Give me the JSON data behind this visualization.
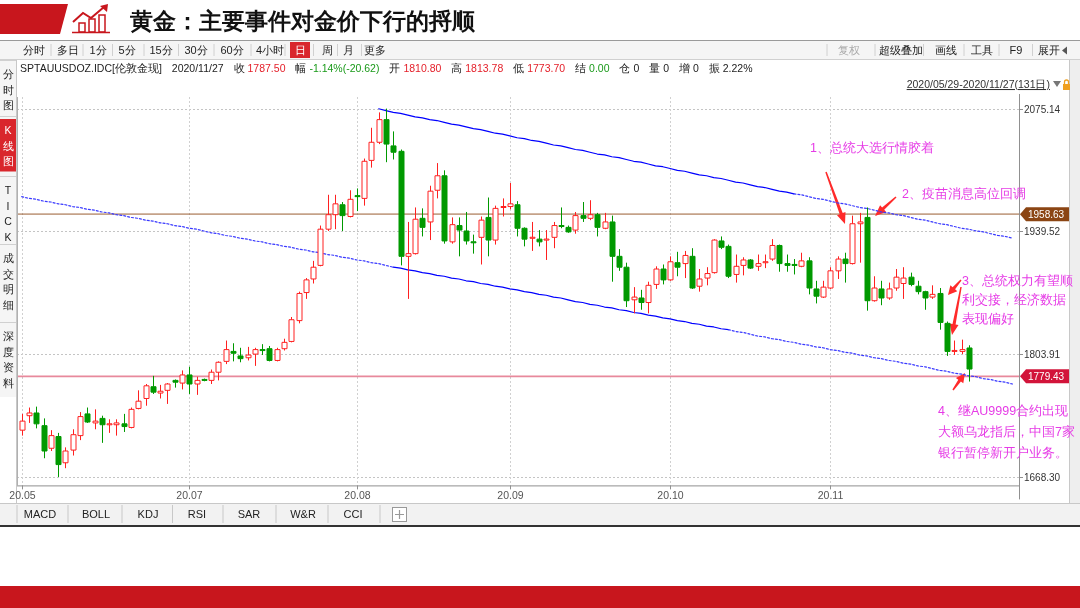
{
  "chart_data": {
    "type": "candlestick",
    "title": "黄金：主要事件对金价下行的捋顺",
    "categories": [
      "20.05",
      null,
      null,
      null,
      null,
      null,
      null,
      null,
      null,
      null,
      null,
      null,
      null,
      null,
      null,
      null,
      null,
      null,
      null,
      null,
      null,
      null,
      null,
      "20.07",
      null,
      null,
      null,
      null,
      null,
      null,
      null,
      null,
      null,
      null,
      null,
      null,
      null,
      null,
      null,
      null,
      null,
      null,
      null,
      null,
      null,
      null,
      "20.08",
      null,
      null,
      null,
      null,
      null,
      null,
      null,
      null,
      null,
      null,
      null,
      null,
      null,
      null,
      null,
      null,
      null,
      null,
      null,
      null,
      "20.09",
      null,
      null,
      null,
      null,
      null,
      null,
      null,
      null,
      null,
      null,
      null,
      null,
      null,
      null,
      null,
      null,
      null,
      null,
      null,
      null,
      null,
      "20.10",
      null,
      null,
      null,
      null,
      null,
      null,
      null,
      null,
      null,
      null,
      null,
      null,
      null,
      null,
      null,
      null,
      null,
      null,
      null,
      null,
      null,
      "20.11",
      null,
      null,
      null,
      null,
      null,
      null,
      null,
      null,
      null,
      null,
      null,
      null,
      null,
      null,
      null,
      null,
      null,
      null,
      null,
      null,
      null,
      null,
      null,
      null,
      null
    ],
    "ohlc": [
      [
        1720,
        1738,
        1714,
        1730
      ],
      [
        1736,
        1745,
        1728,
        1739
      ],
      [
        1739,
        1746,
        1722,
        1727
      ],
      [
        1725,
        1733,
        1689,
        1697
      ],
      [
        1700,
        1720,
        1697,
        1714
      ],
      [
        1713,
        1717,
        1668.3,
        1682
      ],
      [
        1684,
        1701,
        1678,
        1697
      ],
      [
        1698,
        1721,
        1692,
        1715
      ],
      [
        1714,
        1740,
        1709,
        1735
      ],
      [
        1738,
        1745,
        1728,
        1729
      ],
      [
        1728,
        1743,
        1721,
        1730
      ],
      [
        1733,
        1736,
        1706,
        1726
      ],
      [
        1726,
        1732,
        1717,
        1727
      ],
      [
        1726,
        1732,
        1714,
        1728
      ],
      [
        1727,
        1738,
        1718,
        1724
      ],
      [
        1723,
        1745,
        1722,
        1743
      ],
      [
        1744,
        1764,
        1743,
        1752
      ],
      [
        1755,
        1771,
        1747,
        1769
      ],
      [
        1768,
        1780,
        1760,
        1762
      ],
      [
        1761,
        1770,
        1755,
        1763
      ],
      [
        1764,
        1772,
        1749,
        1771
      ],
      [
        1775,
        1776,
        1767,
        1773
      ],
      [
        1772,
        1786,
        1765,
        1781
      ],
      [
        1781,
        1790,
        1760,
        1771
      ],
      [
        1771,
        1779,
        1759,
        1775
      ],
      [
        1776,
        1777,
        1774,
        1775
      ],
      [
        1775,
        1787,
        1771,
        1784
      ],
      [
        1784,
        1796,
        1775,
        1795
      ],
      [
        1796,
        1819,
        1793,
        1809
      ],
      [
        1807,
        1816,
        1796,
        1805
      ],
      [
        1802,
        1811,
        1795,
        1799
      ],
      [
        1800,
        1812,
        1797,
        1803
      ],
      [
        1804,
        1811,
        1791,
        1809
      ],
      [
        1809,
        1815,
        1803,
        1808
      ],
      [
        1810,
        1813,
        1796,
        1797
      ],
      [
        1797,
        1811,
        1796,
        1809
      ],
      [
        1810,
        1821,
        1808,
        1817
      ],
      [
        1818,
        1845,
        1817,
        1842
      ],
      [
        1841,
        1873,
        1838,
        1871
      ],
      [
        1872,
        1888,
        1865,
        1886
      ],
      [
        1887,
        1907,
        1882,
        1900
      ],
      [
        1902,
        1946,
        1901,
        1942
      ],
      [
        1942,
        1980,
        1940,
        1958
      ],
      [
        1958,
        1980,
        1942,
        1970
      ],
      [
        1969,
        1972,
        1940,
        1957
      ],
      [
        1956,
        1985,
        1955,
        1975
      ],
      [
        1979,
        1987,
        1962,
        1978
      ],
      [
        1976,
        2020,
        1968,
        2017
      ],
      [
        2018,
        2054,
        2010,
        2038
      ],
      [
        2038,
        2071,
        2036,
        2063
      ],
      [
        2063,
        2075.14,
        2016,
        2036
      ],
      [
        2034,
        2050,
        2019,
        2027
      ],
      [
        2028,
        2030,
        1902,
        1912
      ],
      [
        1912,
        1950,
        1865,
        1915
      ],
      [
        1915,
        1966,
        1914,
        1953
      ],
      [
        1954,
        1965,
        1934,
        1944
      ],
      [
        1950,
        1990,
        1930,
        1984
      ],
      [
        1985,
        2015,
        1976,
        2001
      ],
      [
        2001,
        2007,
        1926,
        1929
      ],
      [
        1928,
        1955,
        1926,
        1947
      ],
      [
        1946,
        1955,
        1912,
        1941
      ],
      [
        1940,
        1961,
        1925,
        1929
      ],
      [
        1928,
        1936,
        1915,
        1927
      ],
      [
        1933,
        1956,
        1903,
        1952
      ],
      [
        1955,
        1977,
        1912,
        1930
      ],
      [
        1930,
        1968,
        1925,
        1965
      ],
      [
        1966,
        1976,
        1956,
        1967
      ],
      [
        1967,
        1993,
        1964,
        1970
      ],
      [
        1969,
        1973,
        1934,
        1943
      ],
      [
        1943,
        1944,
        1923,
        1931
      ],
      [
        1932,
        1950,
        1918,
        1933
      ],
      [
        1931,
        1941,
        1923,
        1928
      ],
      [
        1930,
        1941,
        1908,
        1931
      ],
      [
        1933,
        1950,
        1921,
        1946
      ],
      [
        1946,
        1966,
        1943,
        1945
      ],
      [
        1944,
        1946,
        1938,
        1939
      ],
      [
        1941,
        1961,
        1937,
        1957
      ],
      [
        1957,
        1972,
        1950,
        1954
      ],
      [
        1954,
        1974,
        1952,
        1958
      ],
      [
        1958,
        1960,
        1934,
        1944
      ],
      [
        1943,
        1960,
        1942,
        1950
      ],
      [
        1950,
        1957,
        1884,
        1912
      ],
      [
        1912,
        1920,
        1896,
        1900
      ],
      [
        1900,
        1905,
        1856,
        1863
      ],
      [
        1864,
        1878,
        1849,
        1867
      ],
      [
        1866,
        1875,
        1853,
        1861
      ],
      [
        1861,
        1884,
        1849,
        1880
      ],
      [
        1881,
        1901,
        1876,
        1898
      ],
      [
        1898,
        1903,
        1881,
        1886
      ],
      [
        1886,
        1912,
        1885,
        1906
      ],
      [
        1905,
        1917,
        1890,
        1900
      ],
      [
        1904,
        1918,
        1888,
        1913
      ],
      [
        1912,
        1921,
        1876,
        1877
      ],
      [
        1879,
        1898,
        1873,
        1887
      ],
      [
        1888,
        1900,
        1880,
        1893
      ],
      [
        1894,
        1931,
        1893,
        1930
      ],
      [
        1929,
        1934,
        1920,
        1922
      ],
      [
        1923,
        1925,
        1888,
        1890
      ],
      [
        1892,
        1914,
        1883,
        1901
      ],
      [
        1902,
        1911,
        1891,
        1908
      ],
      [
        1908,
        1909,
        1898,
        1899
      ],
      [
        1901,
        1914,
        1896,
        1904
      ],
      [
        1905,
        1914,
        1899,
        1906
      ],
      [
        1909,
        1931,
        1907,
        1924
      ],
      [
        1924,
        1925,
        1895,
        1904
      ],
      [
        1904,
        1914,
        1895,
        1902
      ],
      [
        1903,
        1909,
        1892,
        1902
      ],
      [
        1901,
        1916,
        1900,
        1907
      ],
      [
        1907,
        1911,
        1870,
        1877
      ],
      [
        1876,
        1885,
        1860,
        1868
      ],
      [
        1867,
        1885,
        1866,
        1878
      ],
      [
        1877,
        1900,
        1876,
        1896
      ],
      [
        1896,
        1912,
        1887,
        1909
      ],
      [
        1909,
        1916,
        1883,
        1904
      ],
      [
        1904,
        1957,
        1903,
        1948
      ],
      [
        1948,
        1960,
        1905,
        1950
      ],
      [
        1955,
        1966,
        1852,
        1863
      ],
      [
        1863,
        1890,
        1862,
        1877
      ],
      [
        1876,
        1885,
        1858,
        1866
      ],
      [
        1866,
        1883,
        1864,
        1876
      ],
      [
        1877,
        1898,
        1874,
        1889
      ],
      [
        1882,
        1900,
        1865,
        1888
      ],
      [
        1889,
        1894,
        1879,
        1881
      ],
      [
        1879,
        1885,
        1870,
        1873
      ],
      [
        1873,
        1874,
        1853,
        1866
      ],
      [
        1867,
        1880,
        1865,
        1870
      ],
      [
        1871,
        1877,
        1831,
        1839
      ],
      [
        1838,
        1840,
        1802,
        1807
      ],
      [
        1807,
        1819,
        1803,
        1808
      ],
      [
        1807,
        1820,
        1804,
        1809
      ],
      [
        1810.8,
        1813.78,
        1773.7,
        1787.5
      ],
      null,
      null,
      null,
      null,
      null,
      null
    ],
    "colors": [
      "#ff2020",
      "#ff2020",
      "#009900",
      "#009900",
      "#ff2020",
      "#009900",
      "#ff2020",
      "#ff2020",
      "#ff2020",
      "#009900",
      "#ff2020",
      "#009900",
      "#ff2020",
      "#ff2020",
      "#009900",
      "#ff2020",
      "#ff2020",
      "#ff2020",
      "#009900",
      "#ff2020",
      "#ff2020",
      "#009900",
      "#ff2020",
      "#009900",
      "#ff2020",
      "#009900",
      "#ff2020",
      "#ff2020",
      "#ff2020",
      "#009900",
      "#009900",
      "#ff2020",
      "#ff2020",
      "#009900",
      "#009900",
      "#ff2020",
      "#ff2020",
      "#ff2020",
      "#ff2020",
      "#ff2020",
      "#ff2020",
      "#ff2020",
      "#ff2020",
      "#ff2020",
      "#009900",
      "#ff2020",
      "#009900",
      "#ff2020",
      "#ff2020",
      "#ff2020",
      "#009900",
      "#009900",
      "#009900",
      "#ff2020",
      "#ff2020",
      "#009900",
      "#ff2020",
      "#ff2020",
      "#009900",
      "#ff2020",
      "#009900",
      "#009900",
      "#009900",
      "#ff2020",
      "#009900",
      "#ff2020",
      "#ff2020",
      "#ff2020",
      "#009900",
      "#009900",
      "#ff2020",
      "#009900",
      "#ff2020",
      "#ff2020",
      "#009900",
      "#009900",
      "#ff2020",
      "#009900",
      "#ff2020",
      "#009900",
      "#ff2020",
      "#009900",
      "#009900",
      "#009900",
      "#ff2020",
      "#009900",
      "#ff2020",
      "#ff2020",
      "#009900",
      "#ff2020",
      "#009900",
      "#ff2020",
      "#009900",
      "#ff2020",
      "#ff2020",
      "#ff2020",
      "#009900",
      "#009900",
      "#ff2020",
      "#ff2020",
      "#009900",
      "#ff2020",
      "#ff2020",
      "#ff2020",
      "#009900",
      "#009900",
      "#009900",
      "#ff2020",
      "#009900",
      "#009900",
      "#ff2020",
      "#ff2020",
      "#ff2020",
      "#009900",
      "#ff2020",
      "#ff2020",
      "#009900",
      "#ff2020",
      "#009900",
      "#ff2020",
      "#ff2020",
      "#ff2020",
      "#009900",
      "#009900",
      "#009900",
      "#ff2020",
      "#009900",
      "#009900",
      "#ff2020",
      "#ff2020",
      "#009900",
      null,
      null,
      null,
      null,
      null,
      null
    ],
    "series": [
      {
        "type": "line",
        "color": "#3a3aff",
        "line_style": "dotted",
        "values": [
          1978,
          1976,
          1975,
          1973,
          1972,
          1970,
          1969,
          1967,
          1966,
          1964,
          1963,
          1961,
          1960,
          1958,
          1957,
          1955,
          1954,
          1952,
          1951,
          1949,
          1948,
          1946,
          1945,
          1943,
          1942,
          1940,
          1938,
          1937,
          1935,
          1934,
          1932,
          1931,
          1929,
          1928,
          1926,
          1925,
          1923,
          1922,
          1920,
          1919,
          1917,
          1916,
          1914,
          1913,
          1911,
          1910,
          1908,
          1907,
          1905,
          1904,
          1902,
          1900,
          null,
          null,
          null,
          null,
          null,
          null,
          null,
          null,
          null,
          null,
          null,
          null,
          null,
          null,
          null,
          null,
          null,
          null,
          null,
          null,
          null,
          null,
          null,
          null,
          null,
          null,
          null,
          null,
          null,
          null,
          null,
          null,
          null,
          null,
          null,
          null,
          null,
          null,
          null,
          null,
          null,
          null,
          null,
          null,
          null,
          null,
          null,
          null,
          null,
          null,
          null,
          null,
          null,
          null,
          null,
          null,
          null,
          null,
          null,
          null,
          null,
          null,
          null,
          null,
          null,
          null,
          null,
          null,
          null,
          null,
          null,
          null,
          null,
          null,
          null,
          null,
          null,
          null,
          null,
          null,
          null,
          null,
          null,
          null,
          null
        ]
      },
      {
        "type": "line",
        "color": "#0000ff",
        "line_style": "solid",
        "values": [
          null,
          null,
          null,
          null,
          null,
          null,
          null,
          null,
          null,
          null,
          null,
          null,
          null,
          null,
          null,
          null,
          null,
          null,
          null,
          null,
          null,
          null,
          null,
          null,
          null,
          null,
          null,
          null,
          null,
          null,
          null,
          null,
          null,
          null,
          null,
          null,
          null,
          null,
          null,
          null,
          null,
          null,
          null,
          null,
          null,
          null,
          null,
          null,
          null,
          null,
          null,
          1900,
          1899,
          1897,
          1896,
          1894,
          1893,
          1891,
          1890,
          1888,
          1887,
          1885,
          1884,
          1882,
          1881,
          1879,
          1878,
          1876,
          1875,
          1873,
          1872,
          1870,
          1869,
          1867,
          1866,
          1864,
          1862,
          1861,
          1859,
          1858,
          1856,
          1855,
          1853,
          1852,
          1850,
          1849,
          1847,
          1846,
          1844,
          1843,
          1841,
          1840,
          1838,
          1837,
          1835,
          1834,
          1832,
          1831,
          null,
          null,
          null,
          null,
          null,
          null,
          null,
          null,
          null,
          null,
          null,
          null,
          null,
          null,
          null,
          null,
          null,
          null,
          null,
          null,
          null,
          null,
          null,
          null,
          null,
          null,
          null,
          null,
          null,
          null,
          null,
          null,
          null,
          null,
          null,
          null,
          null,
          null,
          null
        ]
      },
      {
        "type": "line",
        "color": "#3a3aff",
        "line_style": "dotted",
        "values": [
          null,
          null,
          null,
          null,
          null,
          null,
          null,
          null,
          null,
          null,
          null,
          null,
          null,
          null,
          null,
          null,
          null,
          null,
          null,
          null,
          null,
          null,
          null,
          null,
          null,
          null,
          null,
          null,
          null,
          null,
          null,
          null,
          null,
          null,
          null,
          null,
          null,
          null,
          null,
          null,
          null,
          null,
          null,
          null,
          null,
          null,
          null,
          null,
          null,
          null,
          null,
          null,
          null,
          null,
          null,
          null,
          null,
          null,
          null,
          null,
          null,
          null,
          null,
          null,
          null,
          null,
          null,
          null,
          null,
          null,
          null,
          null,
          null,
          null,
          null,
          null,
          null,
          null,
          null,
          null,
          null,
          null,
          null,
          null,
          null,
          null,
          null,
          null,
          null,
          null,
          null,
          null,
          null,
          null,
          null,
          null,
          null,
          1831,
          1829,
          1828,
          1826,
          1824,
          1823,
          1821,
          1820,
          1818,
          1817,
          1815,
          1814,
          1812,
          1811,
          1809,
          1808,
          1806,
          1805,
          1803,
          1802,
          1800,
          1799,
          1797,
          1796,
          1794,
          1793,
          1791,
          1790,
          1788,
          1786,
          1785,
          1783,
          1782,
          1780,
          1779,
          1777,
          1776,
          1774,
          1773,
          1771
        ]
      },
      {
        "type": "line",
        "color": "#0000ff",
        "line_style": "solid",
        "values": [
          null,
          null,
          null,
          null,
          null,
          null,
          null,
          null,
          null,
          null,
          null,
          null,
          null,
          null,
          null,
          null,
          null,
          null,
          null,
          null,
          null,
          null,
          null,
          null,
          null,
          null,
          null,
          null,
          null,
          null,
          null,
          null,
          null,
          null,
          null,
          null,
          null,
          null,
          null,
          null,
          null,
          null,
          null,
          null,
          null,
          null,
          null,
          null,
          null,
          2075,
          2073,
          2071,
          2070,
          2068,
          2066,
          2065,
          2063,
          2062,
          2060,
          2058,
          2057,
          2055,
          2053,
          2052,
          2050,
          2048,
          2047,
          2045,
          2043,
          2042,
          2040,
          2039,
          2037,
          2035,
          2034,
          2032,
          2030,
          2029,
          2027,
          2025,
          2024,
          2022,
          2021,
          2019,
          2017,
          2016,
          2014,
          2012,
          2011,
          2009,
          2007,
          2006,
          2004,
          2002,
          2001,
          1999,
          1998,
          1996,
          1994,
          1993,
          1991,
          1989,
          1988,
          1986,
          1984,
          1983,
          1981,
          null,
          null,
          null,
          null,
          null,
          null,
          null,
          null,
          null,
          null,
          null,
          null,
          null,
          null,
          null,
          null,
          null,
          null,
          null,
          null,
          null,
          null,
          null,
          null,
          null,
          null,
          null,
          null,
          null,
          null
        ]
      },
      {
        "type": "line",
        "color": "#3a3aff",
        "line_style": "dotted",
        "values": [
          null,
          null,
          null,
          null,
          null,
          null,
          null,
          null,
          null,
          null,
          null,
          null,
          null,
          null,
          null,
          null,
          null,
          null,
          null,
          null,
          null,
          null,
          null,
          null,
          null,
          null,
          null,
          null,
          null,
          null,
          null,
          null,
          null,
          null,
          null,
          null,
          null,
          null,
          null,
          null,
          null,
          null,
          null,
          null,
          null,
          null,
          null,
          null,
          null,
          null,
          null,
          null,
          null,
          null,
          null,
          null,
          null,
          null,
          null,
          null,
          null,
          null,
          null,
          null,
          null,
          null,
          null,
          null,
          null,
          null,
          null,
          null,
          null,
          null,
          null,
          null,
          null,
          null,
          null,
          null,
          null,
          null,
          null,
          null,
          null,
          null,
          null,
          null,
          null,
          null,
          null,
          null,
          null,
          null,
          null,
          null,
          null,
          null,
          null,
          null,
          null,
          null,
          null,
          null,
          null,
          null,
          1981,
          1980,
          1978,
          1976,
          1975,
          1973,
          1971,
          1970,
          1968,
          1966,
          1965,
          1963,
          1961,
          1960,
          1958,
          1957,
          1955,
          1953,
          1952,
          1950,
          1948,
          1947,
          1945,
          1943,
          1942,
          1940,
          1939,
          1937,
          1935,
          1934,
          1932
        ]
      }
    ],
    "ylim": [
      1659,
      2088
    ],
    "yticks": [
      {
        "value": 1668.3,
        "label": "1668.30"
      },
      1803.91,
      1939.52,
      2075.14
    ],
    "grid": true,
    "ref_lines": [
      {
        "axis": "y",
        "value": 1958.63,
        "label": "1958.63",
        "color": "#8b4513"
      },
      {
        "axis": "y",
        "value": 1779.43,
        "label": "1779.43",
        "color": "#d2143a"
      }
    ],
    "annotations": [
      "1、总统大选行情胶着",
      "2、疫苗消息高位回调",
      "3、总统权力有望顺利交接，经济数据表现偏好",
      "4、继AU9999合约出现大额乌龙指后，中国7家银行暂停新开户业务。",
      "分时",
      "多日",
      "1分",
      "5分",
      "15分",
      "30分",
      "60分",
      "4小时",
      "日",
      "周",
      "月",
      "更多",
      "复权",
      "超级叠加",
      "画线",
      "工具",
      "F9",
      "展开",
      "分时图",
      "K线图",
      "TICK",
      "成交明细",
      "深度资料",
      "SPTAUUSDOZ.IDC[伦敦金现]",
      "2020/11/27",
      "收 1787.50",
      "幅 -1.14%(-20.62)",
      "开 1810.80",
      "高 1813.78",
      "低 1773.70",
      "结 0.00",
      "仓 0",
      "量 0",
      "增 0",
      "振 2.22%",
      "2020/05/29-2020/11/27(131日)",
      "MACD",
      "BOLL",
      "KDJ",
      "RSI",
      "SAR",
      "W&R",
      "CCI"
    ]
  }
}
